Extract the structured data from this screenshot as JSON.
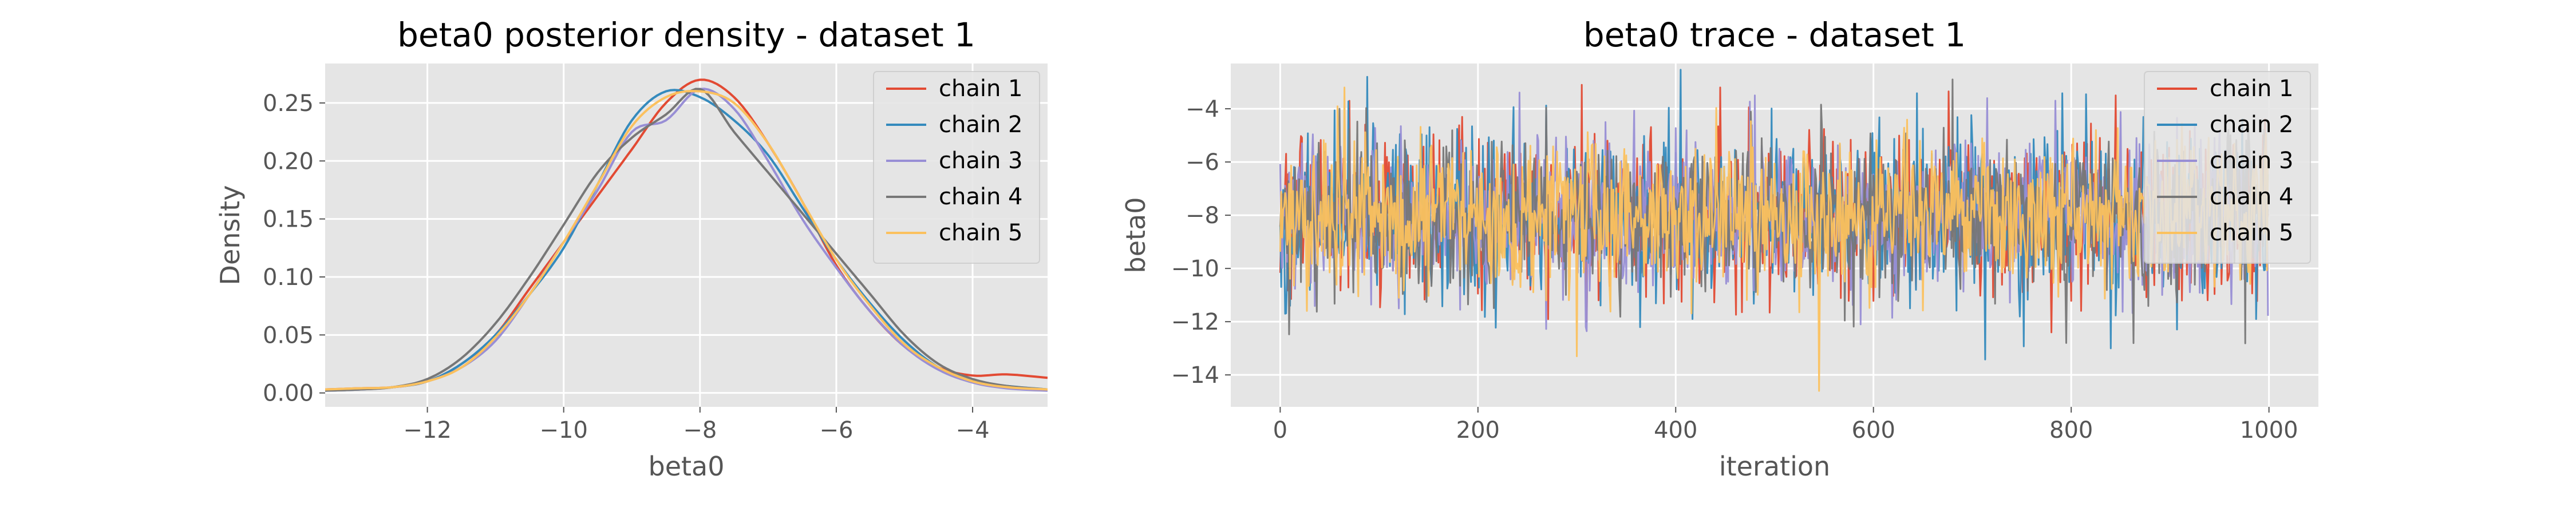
{
  "chart_data": [
    {
      "type": "line",
      "title": "beta0 posterior density - dataset 1",
      "xlabel": "beta0",
      "ylabel": "Density",
      "xlim": [
        -13.5,
        -2.9
      ],
      "ylim": [
        -0.012,
        0.284
      ],
      "xticks": [
        -12,
        -10,
        -8,
        -6,
        -4
      ],
      "yticks": [
        0.0,
        0.05,
        0.1,
        0.15,
        0.2,
        0.25
      ],
      "xtick_labels": [
        "−12",
        "−10",
        "−8",
        "−6",
        "−4"
      ],
      "ytick_labels": [
        "0.00",
        "0.05",
        "0.10",
        "0.15",
        "0.20",
        "0.25"
      ],
      "grid": true,
      "legend_position": "top-right",
      "series": [
        {
          "name": "chain 1",
          "color": "#E24A33",
          "x": [
            -13.5,
            -13,
            -12.5,
            -12,
            -11.5,
            -11,
            -10.5,
            -10,
            -9.5,
            -9,
            -8.5,
            -8,
            -7.5,
            -7,
            -6.5,
            -6,
            -5.5,
            -5,
            -4.5,
            -4,
            -3.5,
            -2.9
          ],
          "y": [
            0.003,
            0.004,
            0.005,
            0.01,
            0.025,
            0.05,
            0.09,
            0.13,
            0.17,
            0.21,
            0.25,
            0.27,
            0.255,
            0.215,
            0.165,
            0.11,
            0.07,
            0.04,
            0.022,
            0.015,
            0.016,
            0.013
          ]
        },
        {
          "name": "chain 2",
          "color": "#348ABD",
          "x": [
            -13.5,
            -13,
            -12.5,
            -12,
            -11.5,
            -11,
            -10.5,
            -10,
            -9.5,
            -9,
            -8.5,
            -8,
            -7.5,
            -7,
            -6.5,
            -6,
            -5.5,
            -5,
            -4.5,
            -4,
            -3.5,
            -2.9
          ],
          "y": [
            0.002,
            0.003,
            0.005,
            0.01,
            0.025,
            0.05,
            0.085,
            0.125,
            0.18,
            0.235,
            0.26,
            0.255,
            0.235,
            0.205,
            0.16,
            0.115,
            0.077,
            0.045,
            0.022,
            0.01,
            0.006,
            0.003
          ]
        },
        {
          "name": "chain 3",
          "color": "#988ED5",
          "x": [
            -13.5,
            -13,
            -12.5,
            -12,
            -11.5,
            -11,
            -10.5,
            -10,
            -9.5,
            -9,
            -8.5,
            -8,
            -7.5,
            -7,
            -6.5,
            -6,
            -5.5,
            -5,
            -4.5,
            -4,
            -3.5,
            -2.9
          ],
          "y": [
            0.002,
            0.003,
            0.005,
            0.01,
            0.022,
            0.045,
            0.085,
            0.13,
            0.175,
            0.225,
            0.235,
            0.262,
            0.245,
            0.2,
            0.15,
            0.108,
            0.07,
            0.04,
            0.02,
            0.009,
            0.004,
            0.002
          ]
        },
        {
          "name": "chain 4",
          "color": "#777777",
          "x": [
            -13.5,
            -13,
            -12.5,
            -12,
            -11.5,
            -11,
            -10.5,
            -10,
            -9.5,
            -9,
            -8.5,
            -8,
            -7.5,
            -7,
            -6.5,
            -6,
            -5.5,
            -5,
            -4.5,
            -4,
            -3.5,
            -2.9
          ],
          "y": [
            0.002,
            0.003,
            0.005,
            0.012,
            0.03,
            0.06,
            0.1,
            0.145,
            0.19,
            0.22,
            0.24,
            0.262,
            0.225,
            0.19,
            0.155,
            0.12,
            0.085,
            0.05,
            0.025,
            0.012,
            0.006,
            0.003
          ]
        },
        {
          "name": "chain 5",
          "color": "#FBC15E",
          "x": [
            -13.5,
            -13,
            -12.5,
            -12,
            -11.5,
            -11,
            -10.5,
            -10,
            -9.5,
            -9,
            -8.5,
            -8,
            -7.5,
            -7,
            -6.5,
            -6,
            -5.5,
            -5,
            -4.5,
            -4,
            -3.5,
            -2.9
          ],
          "y": [
            0.003,
            0.004,
            0.005,
            0.01,
            0.022,
            0.048,
            0.085,
            0.13,
            0.18,
            0.23,
            0.255,
            0.26,
            0.25,
            0.215,
            0.165,
            0.115,
            0.075,
            0.042,
            0.022,
            0.01,
            0.005,
            0.003
          ]
        }
      ]
    },
    {
      "type": "line",
      "title": "beta0 trace - dataset 1",
      "xlabel": "iteration",
      "ylabel": "beta0",
      "xlim": [
        -50,
        1050
      ],
      "ylim": [
        -15.2,
        -2.3
      ],
      "xticks": [
        0,
        200,
        400,
        600,
        800,
        1000
      ],
      "yticks": [
        -14,
        -12,
        -10,
        -8,
        -6,
        -4
      ],
      "xtick_labels": [
        "0",
        "200",
        "400",
        "600",
        "800",
        "1000"
      ],
      "ytick_labels": [
        "−14",
        "−12",
        "−10",
        "−8",
        "−6",
        "−4"
      ],
      "grid": true,
      "legend_position": "top-right",
      "n_iterations": 1000,
      "series": [
        {
          "name": "chain 1",
          "color": "#E24A33",
          "mean": -8.0,
          "sd": 1.45,
          "extremes": [
            [
              70,
              -3.7
            ],
            [
              305,
              -3.1
            ],
            [
              445,
              -3.2
            ],
            [
              780,
              -12.4
            ],
            [
              845,
              -3.5
            ]
          ]
        },
        {
          "name": "chain 2",
          "color": "#348ABD",
          "mean": -8.0,
          "sd": 1.5,
          "extremes": [
            [
              88,
              -2.8
            ],
            [
              5,
              -11.7
            ],
            [
              840,
              -13.0
            ]
          ]
        },
        {
          "name": "chain 3",
          "color": "#988ED5",
          "mean": -8.0,
          "sd": 1.45,
          "extremes": [
            [
              480,
              -3.5
            ],
            [
              715,
              -3.6
            ],
            [
              120,
              -11.5
            ]
          ]
        },
        {
          "name": "chain 4",
          "color": "#777777",
          "mean": -8.0,
          "sd": 1.45,
          "extremes": [
            [
              680,
              -2.9
            ],
            [
              795,
              -12.8
            ],
            [
              60,
              -4.0
            ]
          ]
        },
        {
          "name": "chain 5",
          "color": "#FBC15E",
          "mean": -8.0,
          "sd": 1.4,
          "extremes": [
            [
              65,
              -3.2
            ],
            [
              300,
              -13.3
            ],
            [
              545,
              -14.6
            ]
          ]
        }
      ]
    }
  ]
}
